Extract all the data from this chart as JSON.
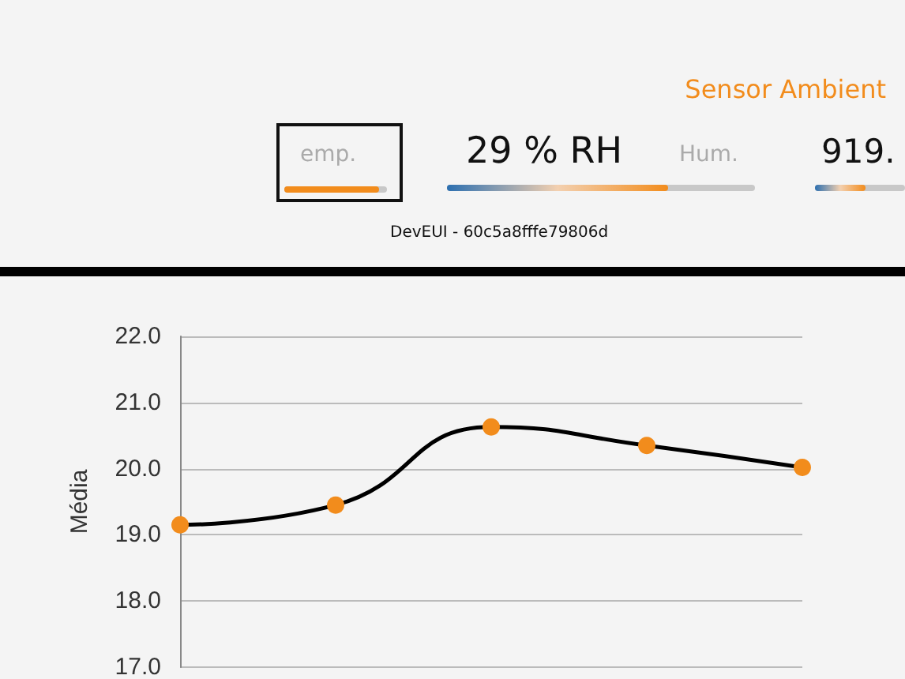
{
  "chart_data": [
    {
      "type": "other",
      "title": "Sensor Ambient",
      "annotations": [
        "emp.",
        "29 % RH",
        "Hum.",
        "919.",
        "DevEUI - 60c5a8fffe79806d"
      ]
    },
    {
      "type": "line",
      "ylabel": "Média",
      "categories": [
        null,
        null,
        null,
        null,
        null
      ],
      "series": [
        {
          "color": "#000000",
          "values": [
            19.15,
            19.45,
            20.63,
            20.35,
            20.02
          ]
        }
      ],
      "ylim": [
        17,
        22
      ],
      "yticks": [
        {
          "value": 17,
          "label": "17.0"
        },
        {
          "value": 18,
          "label": "18.0"
        },
        {
          "value": 19,
          "label": "19.0"
        },
        {
          "value": 20,
          "label": "20.0"
        },
        {
          "value": 21,
          "label": "21.0"
        },
        {
          "value": 22,
          "label": "22.0"
        }
      ],
      "grid": "y",
      "marker": "circle",
      "line_style": "solid",
      "tick_labels": "y"
    }
  ]
}
